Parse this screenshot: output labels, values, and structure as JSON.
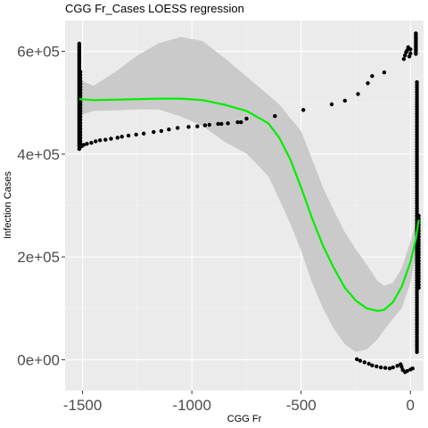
{
  "chart_data": {
    "type": "scatter",
    "title": "CGG Fr_Cases LOESS regression",
    "xlabel": "CGG Fr",
    "ylabel": "Infection Cases",
    "xlim": [
      -1580,
      60
    ],
    "ylim": [
      -60000,
      660000
    ],
    "x_ticks": [
      -1500,
      -1000,
      -500,
      0
    ],
    "x_tick_labels": [
      "-1500",
      "-1000",
      "-500",
      "0"
    ],
    "x_minor_ticks": [
      -1250,
      -750,
      -250
    ],
    "y_ticks": [
      0,
      200000,
      400000,
      600000
    ],
    "y_tick_labels": [
      "0e+00",
      "2e+05",
      "4e+05",
      "6e+05"
    ],
    "y_minor_ticks": [
      100000,
      300000,
      500000
    ],
    "grid": true,
    "background": "#ebebeb",
    "colors": {
      "points": "#000000",
      "loess_line": "#00ee00",
      "confidence_band": "#c8c8c8",
      "grid_major": "#ffffff",
      "grid_minor": "#f4f4f4"
    },
    "series": [
      {
        "type": "scatter",
        "points": [
          [
            -1515,
            410000
          ],
          [
            -1505,
            415000
          ],
          [
            -1495,
            418000
          ],
          [
            -1480,
            420000
          ],
          [
            -1460,
            422000
          ],
          [
            -1440,
            425000
          ],
          [
            -1420,
            427000
          ],
          [
            -1395,
            428000
          ],
          [
            -1370,
            430000
          ],
          [
            -1340,
            432000
          ],
          [
            -1320,
            434000
          ],
          [
            -1290,
            436000
          ],
          [
            -1255,
            438000
          ],
          [
            -1220,
            440000
          ],
          [
            -1175,
            443000
          ],
          [
            -1140,
            445000
          ],
          [
            -1105,
            448000
          ],
          [
            -1065,
            451000
          ],
          [
            -1015,
            453000
          ],
          [
            -975,
            454000
          ],
          [
            -940,
            456000
          ],
          [
            -920,
            457000
          ],
          [
            -880,
            459000
          ],
          [
            -865,
            459000
          ],
          [
            -835,
            460000
          ],
          [
            -790,
            462000
          ],
          [
            -775,
            462000
          ],
          [
            -750,
            469000
          ],
          [
            -620,
            474000
          ],
          [
            -490,
            486000
          ],
          [
            -360,
            497000
          ],
          [
            -300,
            504000
          ],
          [
            -240,
            517000
          ],
          [
            -195,
            538000
          ],
          [
            -175,
            552000
          ],
          [
            -120,
            559000
          ],
          [
            -245,
            1000
          ],
          [
            -230,
            -2000
          ],
          [
            -210,
            -5000
          ],
          [
            -190,
            -8000
          ],
          [
            -175,
            -11000
          ],
          [
            -155,
            -13000
          ],
          [
            -135,
            -15000
          ],
          [
            -115,
            -16000
          ],
          [
            -95,
            -17000
          ],
          [
            -80,
            -15000
          ],
          [
            -60,
            -12000
          ],
          [
            -45,
            -9000
          ],
          [
            -40,
            -14000
          ],
          [
            -35,
            -20000
          ],
          [
            -25,
            -24000
          ],
          [
            -15,
            -22000
          ],
          [
            0,
            -19000
          ],
          [
            10,
            -17000
          ],
          [
            -30,
            585000
          ],
          [
            -25,
            592000
          ],
          [
            -20,
            598000
          ],
          [
            -15,
            602000
          ],
          [
            -10,
            608000
          ],
          [
            -5,
            590000
          ],
          [
            0,
            596000
          ],
          [
            0,
            604000
          ]
        ],
        "vertical_clusters": [
          {
            "x": -1515,
            "y_from": 415000,
            "y_to": 615000,
            "n": 70
          },
          {
            "x": -1510,
            "y_from": 420000,
            "y_to": 560000,
            "n": 25
          },
          {
            "x": 30,
            "y_from": 15000,
            "y_to": 540000,
            "n": 110
          },
          {
            "x": 38,
            "y_from": 140000,
            "y_to": 280000,
            "n": 25
          },
          {
            "x": 25,
            "y_from": 595000,
            "y_to": 635000,
            "n": 12
          }
        ]
      },
      {
        "type": "line",
        "name": "LOESS",
        "x": [
          -1515,
          -1450,
          -1350,
          -1250,
          -1150,
          -1050,
          -950,
          -850,
          -750,
          -650,
          -600,
          -550,
          -500,
          -450,
          -400,
          -350,
          -300,
          -250,
          -200,
          -150,
          -120,
          -80,
          -40,
          0,
          25,
          38
        ],
        "y": [
          507000,
          505000,
          506000,
          507000,
          508000,
          508000,
          505000,
          496000,
          484000,
          460000,
          432000,
          390000,
          335000,
          275000,
          222000,
          178000,
          140000,
          115000,
          100000,
          95000,
          97000,
          112000,
          142000,
          190000,
          235000,
          272000
        ],
        "ci_lower": [
          475000,
          484000,
          485000,
          487000,
          487000,
          473000,
          455000,
          424000,
          401000,
          357000,
          312000,
          265000,
          212000,
          150000,
          100000,
          60000,
          30000,
          15000,
          20000,
          40000,
          58000,
          80000,
          100000,
          150000,
          205000,
          230000
        ],
        "ci_upper": [
          545000,
          533000,
          560000,
          592000,
          616000,
          628000,
          620000,
          587000,
          551000,
          515000,
          497000,
          470000,
          445000,
          390000,
          335000,
          290000,
          248000,
          215000,
          185000,
          153000,
          144000,
          150000,
          178000,
          230000,
          265000,
          318000
        ]
      }
    ]
  }
}
